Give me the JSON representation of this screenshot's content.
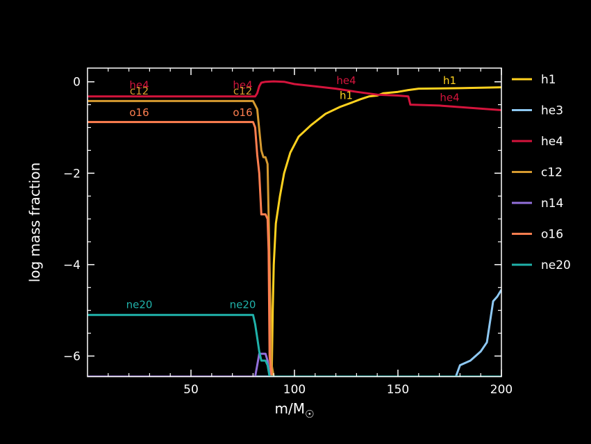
{
  "chart_data": {
    "type": "line",
    "xlabel": "m/M",
    "xlabel_subscript": "☉",
    "ylabel": "log mass fraction",
    "xlim": [
      0,
      200
    ],
    "ylim": [
      -6.45,
      0.3
    ],
    "x_ticks": [
      50,
      100,
      150,
      200
    ],
    "x_tick_labels": [
      "50",
      "100",
      "150",
      "200"
    ],
    "y_ticks": [
      0,
      -2,
      -4,
      -6
    ],
    "y_tick_labels": [
      "0",
      "−2",
      "−4",
      "−6"
    ],
    "legend_position": "right",
    "series": [
      {
        "name": "h1",
        "color": "#ffd21f",
        "x": [
          0,
          87,
          88,
          89,
          89.5,
          90,
          91,
          93,
          95,
          98,
          102,
          108,
          115,
          122,
          128,
          132,
          136,
          140,
          143,
          150,
          155,
          160,
          180,
          200
        ],
        "y": [
          -6.45,
          -6.45,
          -6.45,
          -6.45,
          -5.0,
          -4.0,
          -3.1,
          -2.5,
          -2.0,
          -1.55,
          -1.2,
          -0.95,
          -0.7,
          -0.55,
          -0.45,
          -0.38,
          -0.32,
          -0.3,
          -0.25,
          -0.22,
          -0.18,
          -0.15,
          -0.14,
          -0.12
        ]
      },
      {
        "name": "he3",
        "color": "#8ec8f2",
        "x": [
          0,
          178,
          180,
          185,
          190,
          193,
          196,
          198,
          200
        ],
        "y": [
          -6.45,
          -6.45,
          -6.2,
          -6.1,
          -5.9,
          -5.7,
          -4.8,
          -4.7,
          -4.55
        ]
      },
      {
        "name": "he4",
        "color": "#d4143c",
        "x": [
          0,
          81,
          82,
          83,
          84,
          86,
          90,
          95,
          100,
          110,
          120,
          130,
          140,
          150,
          155,
          156,
          170,
          200
        ],
        "y": [
          -0.32,
          -0.32,
          -0.25,
          -0.1,
          -0.02,
          0.0,
          0.01,
          0.0,
          -0.05,
          -0.1,
          -0.15,
          -0.22,
          -0.28,
          -0.3,
          -0.32,
          -0.5,
          -0.52,
          -0.62
        ]
      },
      {
        "name": "c12",
        "color": "#d69a30",
        "x": [
          0,
          80,
          82,
          84,
          85,
          86,
          87,
          88,
          89,
          90
        ],
        "y": [
          -0.42,
          -0.42,
          -0.6,
          -1.5,
          -1.65,
          -1.65,
          -1.8,
          -4.0,
          -6.2,
          -6.45
        ]
      },
      {
        "name": "n14",
        "color": "#9370db",
        "x": [
          0,
          81,
          82,
          83,
          84,
          86,
          87,
          88,
          89,
          200
        ],
        "y": [
          -6.45,
          -6.45,
          -6.2,
          -5.95,
          -5.95,
          -5.95,
          -6.1,
          -6.4,
          -6.45,
          -6.45
        ]
      },
      {
        "name": "o16",
        "color": "#ff7f50",
        "x": [
          0,
          80,
          81,
          82,
          83,
          84,
          86,
          87,
          87.5,
          88,
          89
        ],
        "y": [
          -0.88,
          -0.88,
          -1.0,
          -1.6,
          -2.0,
          -2.9,
          -2.9,
          -3.0,
          -3.7,
          -6.0,
          -6.45
        ]
      },
      {
        "name": "ne20",
        "color": "#20b2aa",
        "x": [
          0,
          80,
          81,
          82,
          83,
          84,
          86,
          87,
          88,
          89,
          200
        ],
        "y": [
          -5.1,
          -5.1,
          -5.3,
          -5.6,
          -5.9,
          -6.1,
          -6.1,
          -6.2,
          -6.45,
          -6.45,
          -6.45
        ]
      }
    ],
    "annotations": [
      {
        "text": "he4",
        "x": 25,
        "y": -0.15,
        "color": "#d4143c"
      },
      {
        "text": "c12",
        "x": 25,
        "y": -0.28,
        "color": "#d69a30"
      },
      {
        "text": "o16",
        "x": 25,
        "y": -0.75,
        "color": "#ff7f50"
      },
      {
        "text": "ne20",
        "x": 25,
        "y": -4.95,
        "color": "#20b2aa"
      },
      {
        "text": "he4",
        "x": 75,
        "y": -0.15,
        "color": "#d4143c"
      },
      {
        "text": "c12",
        "x": 75,
        "y": -0.28,
        "color": "#d69a30"
      },
      {
        "text": "o16",
        "x": 75,
        "y": -0.75,
        "color": "#ff7f50"
      },
      {
        "text": "ne20",
        "x": 75,
        "y": -4.95,
        "color": "#20b2aa"
      },
      {
        "text": "he4",
        "x": 125,
        "y": -0.05,
        "color": "#d4143c"
      },
      {
        "text": "h1",
        "x": 125,
        "y": -0.38,
        "color": "#ffd21f"
      },
      {
        "text": "h1",
        "x": 175,
        "y": -0.05,
        "color": "#ffd21f"
      },
      {
        "text": "he4",
        "x": 175,
        "y": -0.42,
        "color": "#d4143c"
      }
    ]
  }
}
